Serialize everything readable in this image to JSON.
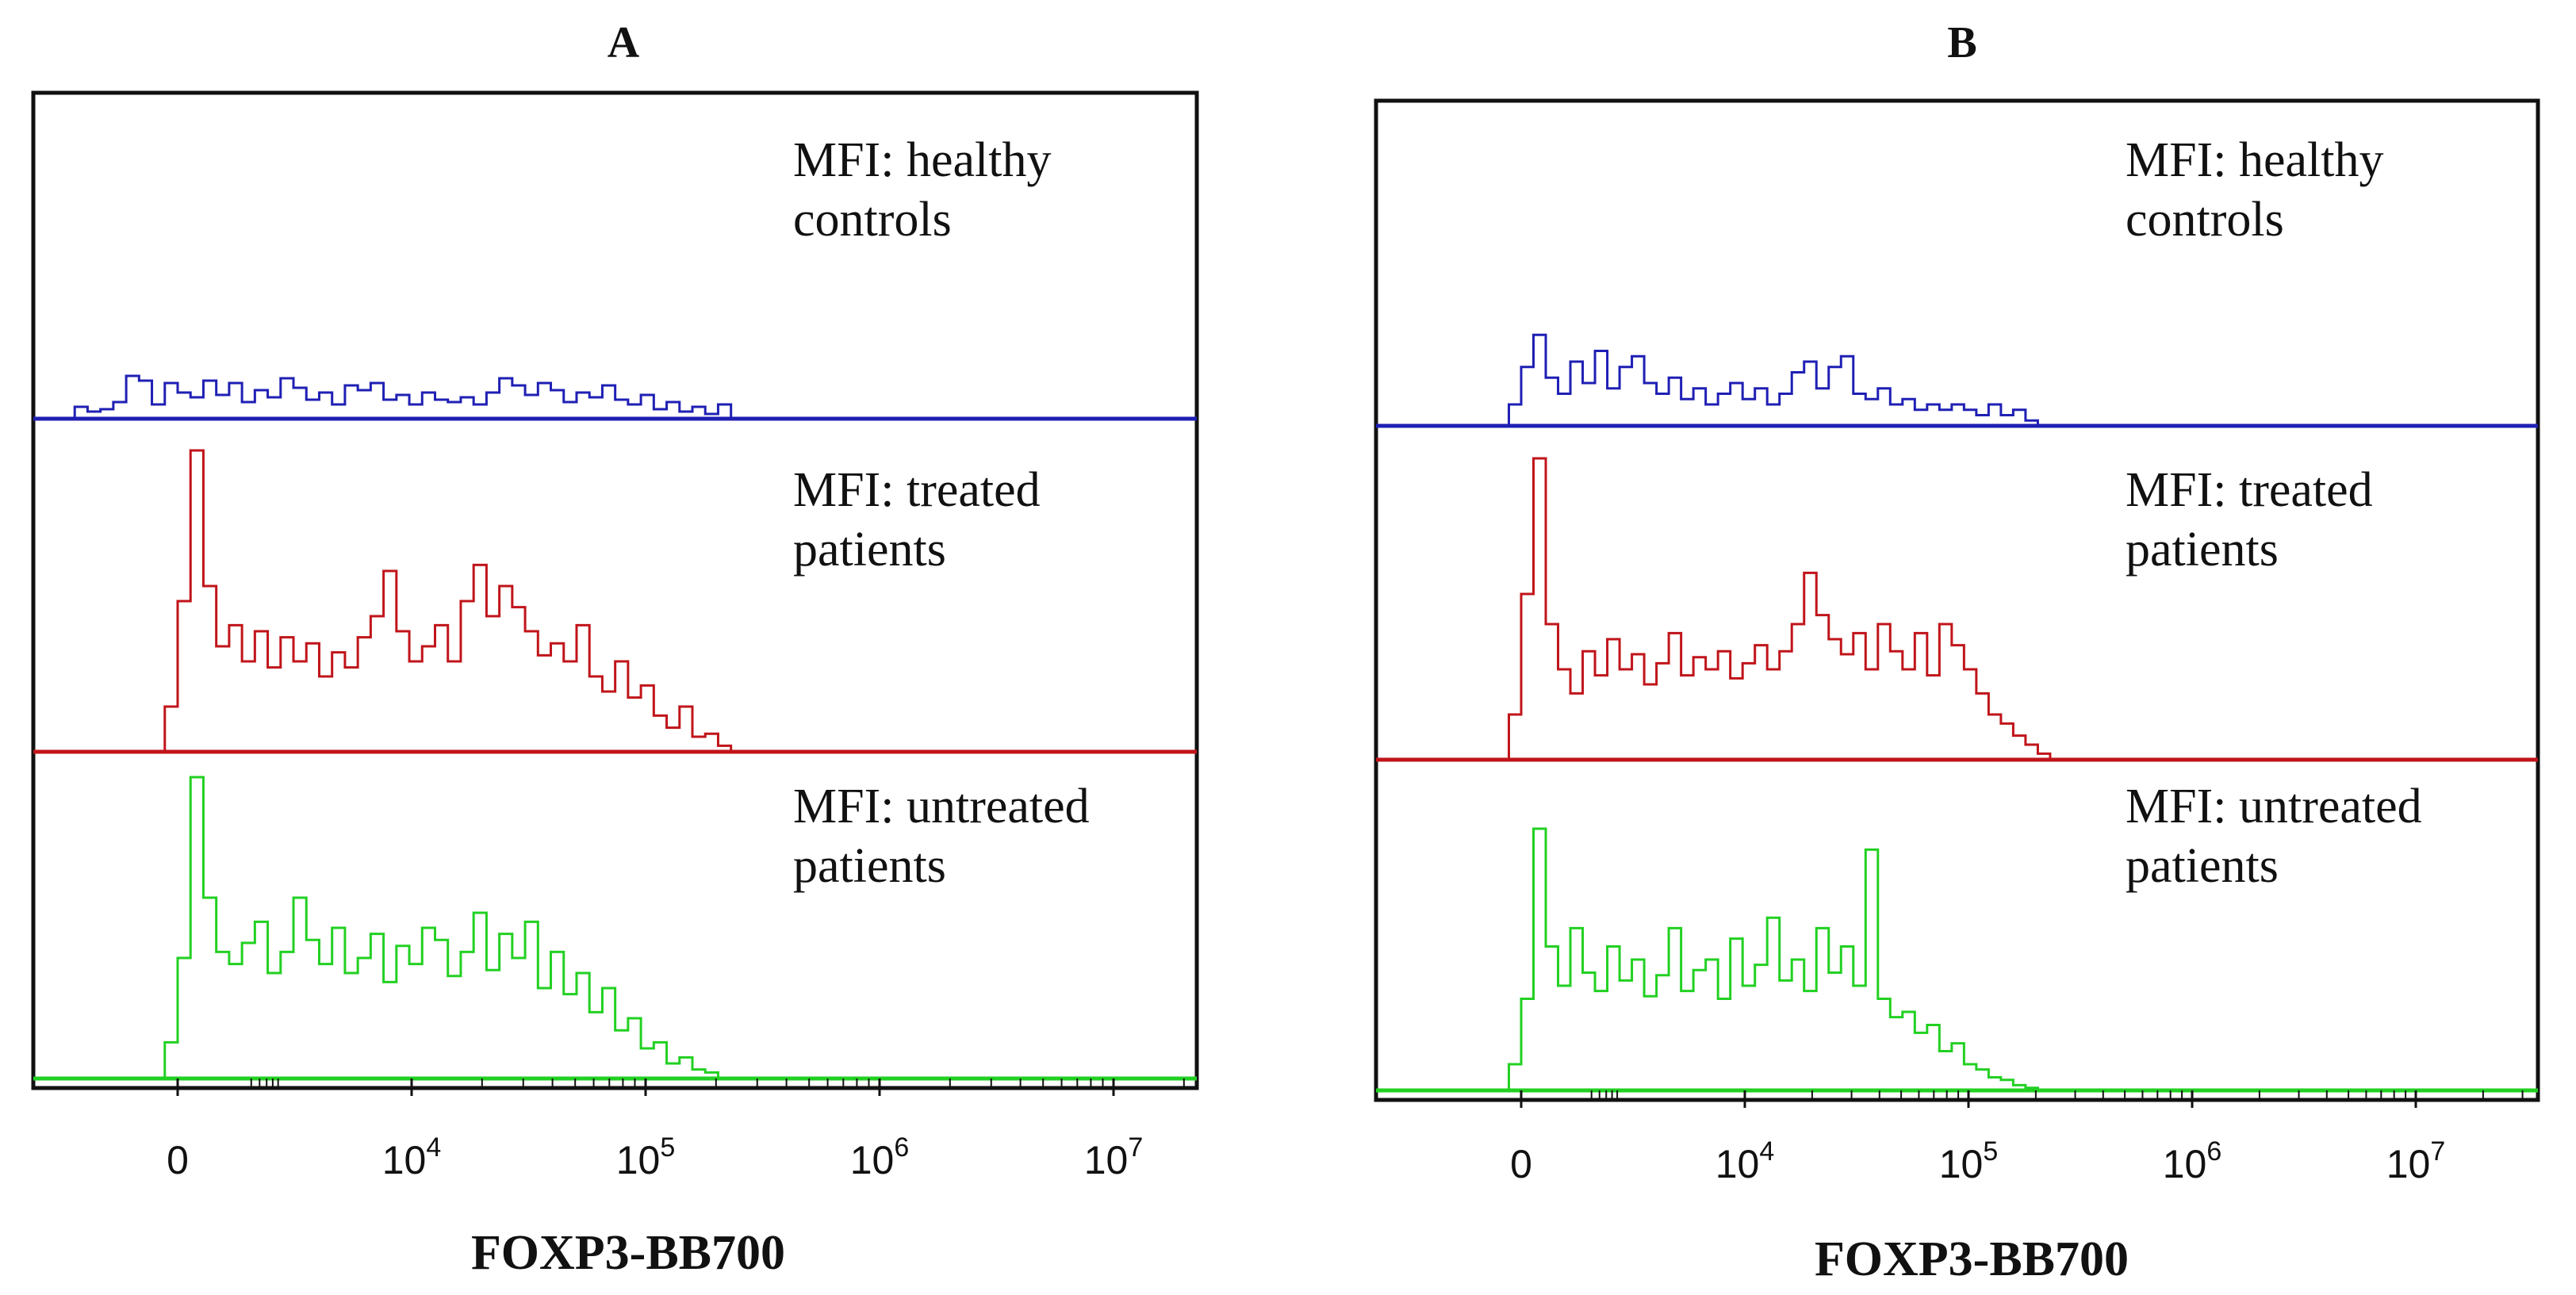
{
  "chart_data": [
    {
      "type": "histogram-overlay",
      "panel": "A",
      "xlabel": "FOXP3-BB700",
      "x_scale": "biexponential",
      "x_ticks": [
        {
          "value": "0",
          "base": "0",
          "exp": ""
        },
        {
          "value": "10^4",
          "base": "10",
          "exp": "4"
        },
        {
          "value": "10^5",
          "base": "10",
          "exp": "5"
        },
        {
          "value": "10^6",
          "base": "10",
          "exp": "6"
        },
        {
          "value": "10^7",
          "base": "10",
          "exp": "7"
        }
      ],
      "series": [
        {
          "name": "healthy controls",
          "label_line1": "MFI: healthy",
          "label_line2": "controls",
          "color": "#1f1fb4",
          "x_log": [
            -0.8,
            -0.7,
            -0.6,
            -0.5,
            -0.4,
            -0.3,
            -0.2,
            -0.1,
            0,
            0.1,
            0.2,
            0.3,
            0.4,
            0.5,
            0.6,
            0.7,
            0.8,
            0.9,
            1.0,
            1.1,
            1.2,
            1.3,
            1.4,
            1.5,
            1.6,
            1.7,
            1.8,
            1.9,
            2.0,
            2.1,
            2.2,
            2.3,
            2.4,
            2.5,
            2.6,
            2.7,
            2.8,
            2.9,
            3.0,
            3.1,
            3.2,
            3.3,
            3.4,
            3.5,
            3.6,
            3.7,
            3.8,
            3.9,
            4.0,
            4.1,
            4.2,
            4.3
          ],
          "values": [
            0.25,
            0.15,
            0.2,
            0.35,
            0.9,
            0.8,
            0.3,
            0.75,
            0.55,
            0.45,
            0.8,
            0.5,
            0.75,
            0.35,
            0.6,
            0.45,
            0.85,
            0.65,
            0.4,
            0.55,
            0.3,
            0.7,
            0.6,
            0.75,
            0.4,
            0.5,
            0.3,
            0.55,
            0.4,
            0.35,
            0.45,
            0.3,
            0.55,
            0.85,
            0.7,
            0.5,
            0.75,
            0.6,
            0.35,
            0.55,
            0.45,
            0.7,
            0.4,
            0.3,
            0.5,
            0.2,
            0.35,
            0.15,
            0.25,
            0.1,
            0.3,
            0.0
          ]
        },
        {
          "name": "treated patients",
          "label_line1": "MFI: treated",
          "label_line2": "patients",
          "color": "#c0141a",
          "x_log": [
            -0.1,
            0,
            0.1,
            0.2,
            0.3,
            0.4,
            0.5,
            0.6,
            0.7,
            0.8,
            0.9,
            1.0,
            1.1,
            1.2,
            1.3,
            1.4,
            1.5,
            1.6,
            1.7,
            1.8,
            1.9,
            2.0,
            2.1,
            2.2,
            2.3,
            2.4,
            2.5,
            2.6,
            2.7,
            2.8,
            2.9,
            3.0,
            3.1,
            3.2,
            3.3,
            3.4,
            3.5,
            3.6,
            3.7,
            3.8,
            3.9,
            4.0,
            4.1,
            4.2,
            4.3
          ],
          "values": [
            0.15,
            0.5,
            1.0,
            0.55,
            0.35,
            0.42,
            0.3,
            0.4,
            0.28,
            0.38,
            0.3,
            0.36,
            0.25,
            0.33,
            0.28,
            0.38,
            0.45,
            0.6,
            0.4,
            0.3,
            0.35,
            0.42,
            0.3,
            0.5,
            0.62,
            0.45,
            0.55,
            0.48,
            0.4,
            0.32,
            0.36,
            0.3,
            0.42,
            0.25,
            0.2,
            0.3,
            0.18,
            0.22,
            0.12,
            0.08,
            0.15,
            0.05,
            0.06,
            0.02,
            0.0
          ]
        },
        {
          "name": "untreated patients",
          "label_line1": "MFI: untreated",
          "label_line2": "patients",
          "color": "#22d022",
          "x_log": [
            -0.1,
            0,
            0.1,
            0.2,
            0.3,
            0.4,
            0.5,
            0.6,
            0.7,
            0.8,
            0.9,
            1.0,
            1.1,
            1.2,
            1.3,
            1.4,
            1.5,
            1.6,
            1.7,
            1.8,
            1.9,
            2.0,
            2.1,
            2.2,
            2.3,
            2.4,
            2.5,
            2.6,
            2.7,
            2.8,
            2.9,
            3.0,
            3.1,
            3.2,
            3.3,
            3.4,
            3.5,
            3.6,
            3.7,
            3.8,
            3.9,
            4.0,
            4.1,
            4.2
          ],
          "values": [
            0.12,
            0.4,
            1.0,
            0.6,
            0.42,
            0.38,
            0.45,
            0.52,
            0.35,
            0.42,
            0.6,
            0.46,
            0.38,
            0.5,
            0.35,
            0.4,
            0.48,
            0.32,
            0.44,
            0.38,
            0.5,
            0.46,
            0.34,
            0.42,
            0.55,
            0.36,
            0.48,
            0.4,
            0.52,
            0.3,
            0.42,
            0.28,
            0.35,
            0.22,
            0.3,
            0.16,
            0.2,
            0.1,
            0.12,
            0.05,
            0.07,
            0.03,
            0.02,
            0.0
          ]
        }
      ]
    },
    {
      "type": "histogram-overlay",
      "panel": "B",
      "xlabel": "FOXP3-BB700",
      "x_scale": "biexponential",
      "x_ticks": [
        {
          "value": "0",
          "base": "0",
          "exp": ""
        },
        {
          "value": "10^4",
          "base": "10",
          "exp": "4"
        },
        {
          "value": "10^5",
          "base": "10",
          "exp": "5"
        },
        {
          "value": "10^6",
          "base": "10",
          "exp": "6"
        },
        {
          "value": "10^7",
          "base": "10",
          "exp": "7"
        }
      ],
      "series": [
        {
          "name": "healthy controls",
          "label_line1": "MFI: healthy",
          "label_line2": "controls",
          "color": "#1f1fb4",
          "x_log": [
            -0.1,
            0,
            0.1,
            0.2,
            0.3,
            0.4,
            0.5,
            0.6,
            0.7,
            0.8,
            0.9,
            1.0,
            1.1,
            1.2,
            1.3,
            1.4,
            1.5,
            1.6,
            1.7,
            1.8,
            1.9,
            2.0,
            2.1,
            2.2,
            2.3,
            2.4,
            2.5,
            2.6,
            2.7,
            2.8,
            2.9,
            3.0,
            3.1,
            3.2,
            3.3,
            3.4,
            3.5,
            3.6,
            3.7,
            3.8,
            3.9,
            4.0,
            4.1,
            4.2
          ],
          "values": [
            0.2,
            0.55,
            0.85,
            0.45,
            0.3,
            0.6,
            0.4,
            0.7,
            0.35,
            0.55,
            0.65,
            0.4,
            0.3,
            0.45,
            0.25,
            0.35,
            0.2,
            0.3,
            0.4,
            0.25,
            0.35,
            0.2,
            0.3,
            0.5,
            0.6,
            0.35,
            0.55,
            0.65,
            0.3,
            0.25,
            0.35,
            0.2,
            0.25,
            0.15,
            0.2,
            0.15,
            0.2,
            0.15,
            0.1,
            0.2,
            0.1,
            0.15,
            0.05,
            0.0
          ]
        },
        {
          "name": "treated patients",
          "label_line1": "MFI: treated",
          "label_line2": "patients",
          "color": "#c0141a",
          "x_log": [
            -0.1,
            0,
            0.1,
            0.2,
            0.3,
            0.4,
            0.5,
            0.6,
            0.7,
            0.8,
            0.9,
            1.0,
            1.1,
            1.2,
            1.3,
            1.4,
            1.5,
            1.6,
            1.7,
            1.8,
            1.9,
            2.0,
            2.1,
            2.2,
            2.3,
            2.4,
            2.5,
            2.6,
            2.7,
            2.8,
            2.9,
            3.0,
            3.1,
            3.2,
            3.3,
            3.4,
            3.5,
            3.6,
            3.7,
            3.8,
            3.9,
            4.0,
            4.1,
            4.2,
            4.3
          ],
          "values": [
            0.15,
            0.55,
            1.0,
            0.45,
            0.3,
            0.22,
            0.36,
            0.28,
            0.4,
            0.3,
            0.35,
            0.25,
            0.32,
            0.42,
            0.28,
            0.34,
            0.3,
            0.36,
            0.27,
            0.32,
            0.38,
            0.3,
            0.36,
            0.45,
            0.62,
            0.48,
            0.4,
            0.35,
            0.42,
            0.3,
            0.45,
            0.36,
            0.3,
            0.42,
            0.28,
            0.45,
            0.38,
            0.3,
            0.22,
            0.15,
            0.12,
            0.08,
            0.05,
            0.02,
            0.0
          ]
        },
        {
          "name": "untreated patients",
          "label_line1": "MFI: untreated",
          "label_line2": "patients",
          "color": "#22d022",
          "x_log": [
            -0.1,
            0,
            0.1,
            0.2,
            0.3,
            0.4,
            0.5,
            0.6,
            0.7,
            0.8,
            0.9,
            1.0,
            1.1,
            1.2,
            1.3,
            1.4,
            1.5,
            1.6,
            1.7,
            1.8,
            1.9,
            2.0,
            2.1,
            2.2,
            2.3,
            2.4,
            2.5,
            2.6,
            2.7,
            2.8,
            2.9,
            3.0,
            3.1,
            3.2,
            3.3,
            3.4,
            3.5,
            3.6,
            3.7,
            3.8,
            3.9,
            4.0,
            4.1,
            4.2
          ],
          "values": [
            0.1,
            0.35,
            1.0,
            0.55,
            0.4,
            0.62,
            0.45,
            0.38,
            0.55,
            0.42,
            0.5,
            0.36,
            0.44,
            0.62,
            0.38,
            0.46,
            0.5,
            0.35,
            0.58,
            0.4,
            0.48,
            0.66,
            0.42,
            0.5,
            0.38,
            0.62,
            0.45,
            0.55,
            0.4,
            0.92,
            0.35,
            0.28,
            0.3,
            0.22,
            0.25,
            0.15,
            0.18,
            0.1,
            0.08,
            0.05,
            0.04,
            0.02,
            0.01,
            0.0
          ]
        }
      ]
    }
  ]
}
